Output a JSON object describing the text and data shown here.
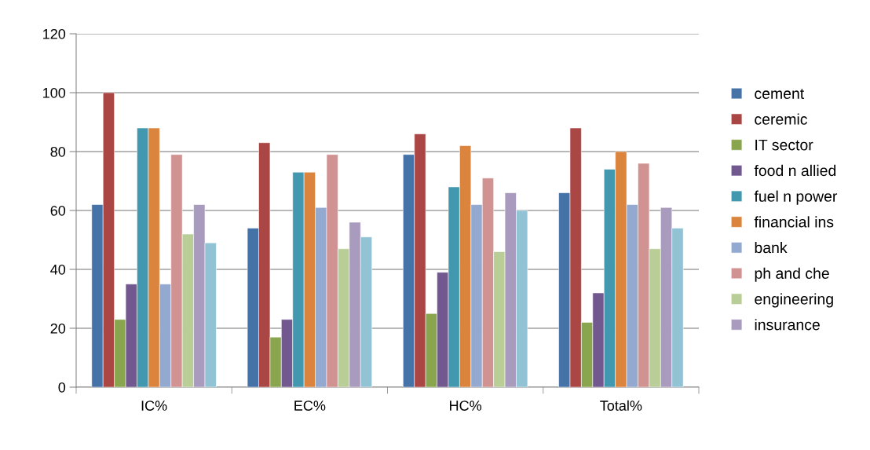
{
  "chart_data": {
    "type": "bar",
    "categories": [
      "IC%",
      "EC%",
      "HC%",
      "Total%"
    ],
    "ylim": [
      0,
      120
    ],
    "yticks": [
      0,
      20,
      40,
      60,
      80,
      100,
      120
    ],
    "grid": "y",
    "legend": "right",
    "series": [
      {
        "name": "cement",
        "color": "#4572a7",
        "values": [
          62,
          54,
          79,
          66
        ]
      },
      {
        "name": "ceremic",
        "color": "#aa4643",
        "values": [
          100,
          83,
          86,
          88
        ]
      },
      {
        "name": "IT sector",
        "color": "#89a54e",
        "values": [
          23,
          17,
          25,
          22
        ]
      },
      {
        "name": "food n allied",
        "color": "#71588f",
        "values": [
          35,
          23,
          39,
          32
        ]
      },
      {
        "name": "fuel n power",
        "color": "#4198af",
        "values": [
          88,
          73,
          68,
          74
        ]
      },
      {
        "name": "financial ins",
        "color": "#db843d",
        "values": [
          88,
          73,
          82,
          80
        ]
      },
      {
        "name": "bank",
        "color": "#93a9cf",
        "values": [
          35,
          61,
          62,
          62
        ]
      },
      {
        "name": "ph and che",
        "color": "#d19392",
        "values": [
          79,
          79,
          71,
          76
        ]
      },
      {
        "name": "engineering",
        "color": "#b9cd96",
        "values": [
          52,
          47,
          46,
          47
        ]
      },
      {
        "name": "insurance",
        "color": "#a99bbd",
        "values": [
          62,
          56,
          66,
          61
        ]
      },
      {
        "color": "#92c3d4",
        "values": [
          49,
          51,
          60,
          54
        ]
      }
    ]
  }
}
